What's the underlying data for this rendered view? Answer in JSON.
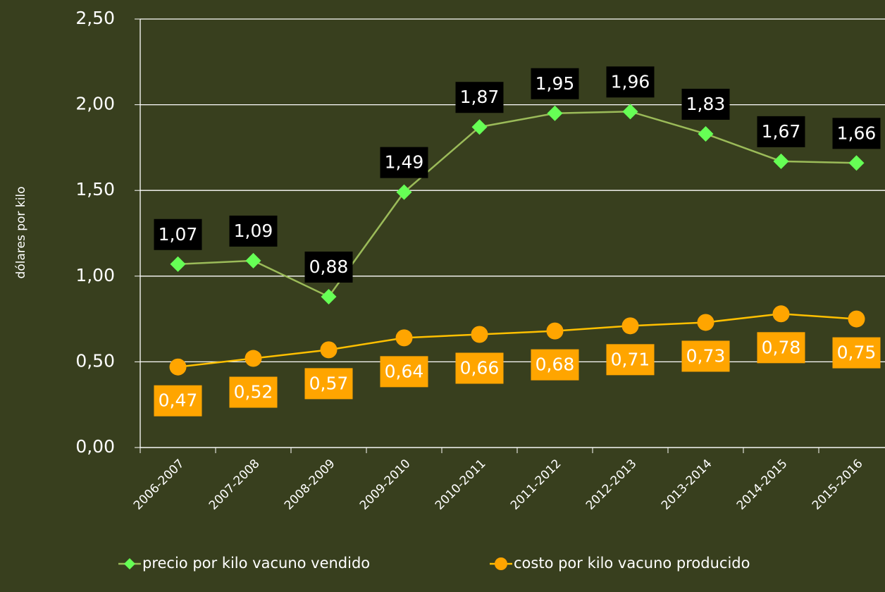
{
  "chart_data": {
    "type": "line",
    "y_label": "dólares por kilo",
    "categories": [
      "2006-2007",
      "2007-2008",
      "2008-2009",
      "2009-2010",
      "2010-2011",
      "2011-2012",
      "2012-2013",
      "2013-2014",
      "2014-2015",
      "2015-2016"
    ],
    "series": [
      {
        "name": "precio por kilo vacuno vendido",
        "color": "#66ff55",
        "line_color": "#9bbb59",
        "marker": "diamond",
        "values": [
          1.07,
          1.09,
          0.88,
          1.49,
          1.87,
          1.95,
          1.96,
          1.83,
          1.67,
          1.66
        ],
        "value_labels": [
          "1,07",
          "1,09",
          "0,88",
          "1,49",
          "1,87",
          "1,95",
          "1,96",
          "1,83",
          "1,67",
          "1,66"
        ],
        "label_box": "#000000"
      },
      {
        "name": "costo por kilo vacuno producido",
        "color": "#ffa500",
        "line_color": "#ffc000",
        "marker": "circle",
        "values": [
          0.47,
          0.52,
          0.57,
          0.64,
          0.66,
          0.68,
          0.71,
          0.73,
          0.78,
          0.75
        ],
        "value_labels": [
          "0,47",
          "0,52",
          "0,57",
          "0,64",
          "0,66",
          "0,68",
          "0,71",
          "0,73",
          "0,78",
          "0,75"
        ],
        "label_box": "#ffa500"
      }
    ],
    "ylim": [
      0,
      2.5
    ],
    "yticks": [
      {
        "value": 0,
        "label": "0,00"
      },
      {
        "value": 0.5,
        "label": "0,50"
      },
      {
        "value": 1,
        "label": "1,00"
      },
      {
        "value": 1.5,
        "label": "1,50"
      },
      {
        "value": 2,
        "label": "2,00"
      },
      {
        "value": 2.5,
        "label": "2,50"
      }
    ],
    "grid": true,
    "legend": "bottom"
  }
}
